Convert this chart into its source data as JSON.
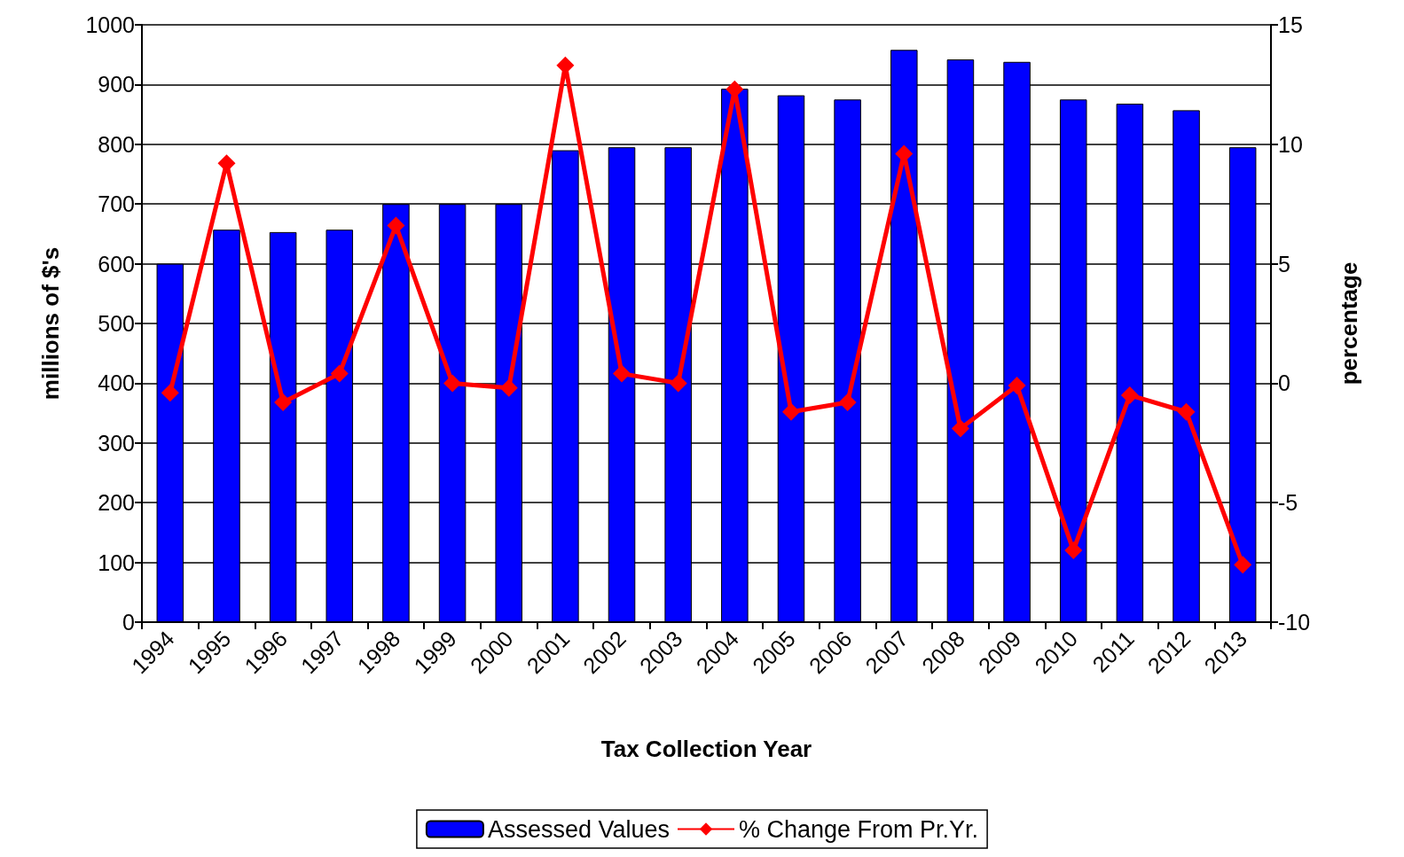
{
  "chart_data": {
    "type": "bar",
    "xlabel": "Tax Collection Year",
    "ylabel": "millions of $'s",
    "y2label": "percentage",
    "categories": [
      "1994",
      "1995",
      "1996",
      "1997",
      "1998",
      "1999",
      "2000",
      "2001",
      "2002",
      "2003",
      "2004",
      "2005",
      "2006",
      "2007",
      "2008",
      "2009",
      "2010",
      "2011",
      "2012",
      "2013"
    ],
    "series": [
      {
        "name": "Assessed Values",
        "color": "#0000ff",
        "values": [
          600,
          657,
          653,
          657,
          700,
          700,
          700,
          790,
          795,
          795,
          893,
          882,
          875,
          958,
          942,
          938,
          875,
          868,
          857,
          795
        ]
      },
      {
        "name": "% Change From Pr.Yr.",
        "type": "line",
        "axis": "y2",
        "color": "#ff0000",
        "marker": "diamond",
        "values": [
          -0.4,
          9.2,
          -0.8,
          0.4,
          6.6,
          0,
          -0.2,
          13.3,
          0.4,
          0,
          12.3,
          -1.2,
          -0.8,
          9.6,
          -1.9,
          -0.1,
          -7.0,
          -0.5,
          -1.2,
          -7.6
        ]
      }
    ],
    "ylim": [
      0,
      1000
    ],
    "yticks": [
      0,
      100,
      200,
      300,
      400,
      500,
      600,
      700,
      800,
      900,
      {
        "value": 1000,
        "label": "1000"
      }
    ],
    "y2lim": [
      -10,
      15
    ],
    "y2ticks": [
      -10,
      -5,
      0,
      5,
      10,
      15
    ],
    "grid": "y",
    "legend": "bottom"
  }
}
